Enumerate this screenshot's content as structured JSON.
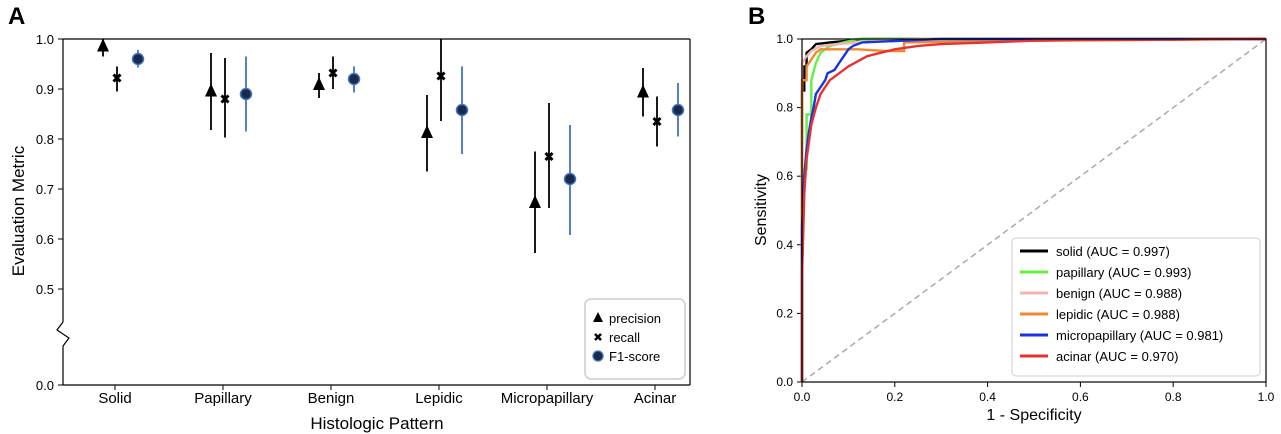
{
  "panels": {
    "a": "A",
    "b": "B"
  },
  "chart_data": [
    {
      "type": "scatter",
      "panel": "A",
      "title": "",
      "xlabel": "Histologic Pattern",
      "ylabel": "Evaluation Metric",
      "categories": [
        "Solid",
        "Papillary",
        "Benign",
        "Lepidic",
        "Micropapillary",
        "Acinar"
      ],
      "ylim": [
        0.5,
        1.0
      ],
      "y_axis_break": true,
      "yticks": [
        "0.0",
        "0.5",
        "0.6",
        "0.7",
        "0.8",
        "0.9",
        "1.0"
      ],
      "error_bars": true,
      "legend_position": "bottom-right",
      "series": [
        {
          "name": "precision",
          "marker": "triangle",
          "color": "#000000",
          "bar_color": "#000000",
          "values": [
            0.985,
            0.895,
            0.908,
            0.812,
            0.672,
            0.893
          ],
          "err_low": [
            0.965,
            0.818,
            0.882,
            0.735,
            0.572,
            0.845
          ],
          "err_high": [
            1.0,
            0.972,
            0.932,
            0.888,
            0.775,
            0.942
          ]
        },
        {
          "name": "recall",
          "marker": "x",
          "color": "#000000",
          "bar_color": "#000000",
          "values": [
            0.922,
            0.88,
            0.932,
            0.926,
            0.765,
            0.835
          ],
          "err_low": [
            0.895,
            0.803,
            0.9,
            0.836,
            0.662,
            0.785
          ],
          "err_high": [
            0.945,
            0.962,
            0.965,
            1.0,
            0.872,
            0.885
          ]
        },
        {
          "name": "F1-score",
          "marker": "circle",
          "color": "#1a2a4a",
          "bar_color": "#4472c4",
          "values": [
            0.96,
            0.89,
            0.92,
            0.858,
            0.72,
            0.858
          ],
          "err_low": [
            0.943,
            0.815,
            0.893,
            0.77,
            0.608,
            0.805
          ],
          "err_high": [
            0.978,
            0.965,
            0.945,
            0.945,
            0.828,
            0.912
          ]
        }
      ]
    },
    {
      "type": "line",
      "panel": "B",
      "title": "",
      "xlabel": "1 - Specificity",
      "ylabel": "Sensitivity",
      "xlim": [
        0.0,
        1.0
      ],
      "ylim": [
        0.0,
        1.0
      ],
      "xticks": [
        "0.0",
        "0.2",
        "0.4",
        "0.6",
        "0.8",
        "1.0"
      ],
      "yticks": [
        "0.0",
        "0.2",
        "0.4",
        "0.6",
        "0.8",
        "1.0"
      ],
      "legend_position": "lower-right",
      "diagonal": {
        "color": "#aaaaaa",
        "style": "dashed"
      },
      "series": [
        {
          "name": "solid (AUC = 0.997)",
          "color": "#000000",
          "x": [
            0,
            0,
            0.005,
            0.005,
            0.01,
            0.01,
            0.02,
            0.03,
            0.06,
            0.1,
            0.13,
            1.0
          ],
          "y": [
            0,
            0.85,
            0.85,
            0.92,
            0.92,
            0.96,
            0.97,
            0.985,
            0.99,
            0.995,
            1.0,
            1.0
          ]
        },
        {
          "name": "papillary (AUC = 0.993)",
          "color": "#66ee44",
          "x": [
            0,
            0,
            0.01,
            0.01,
            0.02,
            0.02,
            0.03,
            0.04,
            0.06,
            0.09,
            0.12,
            1.0
          ],
          "y": [
            0,
            0.62,
            0.62,
            0.78,
            0.78,
            0.88,
            0.93,
            0.96,
            0.98,
            0.99,
            1.0,
            1.0
          ]
        },
        {
          "name": "benign (AUC = 0.988)",
          "color": "#f2b5b5",
          "x": [
            0,
            0,
            0.01,
            0.02,
            0.04,
            0.08,
            0.12,
            0.17,
            0.25,
            1.0
          ],
          "y": [
            0,
            0.93,
            0.95,
            0.965,
            0.98,
            0.985,
            0.99,
            0.995,
            1.0,
            1.0
          ]
        },
        {
          "name": "lepidic (AUC = 0.988)",
          "color": "#f08a30",
          "x": [
            0,
            0,
            0.01,
            0.01,
            0.02,
            0.03,
            0.04,
            0.08,
            0.12,
            0.18,
            0.22,
            0.22,
            0.5,
            1.0
          ],
          "y": [
            0,
            0.88,
            0.88,
            0.92,
            0.94,
            0.96,
            0.97,
            0.97,
            0.97,
            0.965,
            0.965,
            0.99,
            0.995,
            1.0
          ]
        },
        {
          "name": "micropapillary (AUC = 0.981)",
          "color": "#1a33dd",
          "x": [
            0,
            0,
            0.005,
            0.01,
            0.015,
            0.02,
            0.025,
            0.03,
            0.04,
            0.05,
            0.055,
            0.07,
            0.08,
            0.09,
            0.1,
            0.11,
            0.13,
            0.3,
            1.0
          ],
          "y": [
            0,
            0.45,
            0.6,
            0.68,
            0.73,
            0.77,
            0.8,
            0.84,
            0.86,
            0.88,
            0.9,
            0.91,
            0.93,
            0.95,
            0.97,
            0.98,
            0.99,
            1.0,
            1.0
          ]
        },
        {
          "name": "acinar (AUC = 0.970)",
          "color": "#e53333",
          "x": [
            0,
            0,
            0.005,
            0.01,
            0.02,
            0.03,
            0.04,
            0.05,
            0.06,
            0.08,
            0.1,
            0.12,
            0.14,
            0.17,
            0.2,
            0.25,
            0.3,
            0.4,
            0.5,
            0.6,
            0.8,
            0.9,
            1.0
          ],
          "y": [
            0,
            0.3,
            0.55,
            0.65,
            0.75,
            0.8,
            0.84,
            0.86,
            0.88,
            0.9,
            0.92,
            0.935,
            0.95,
            0.96,
            0.97,
            0.98,
            0.985,
            0.99,
            0.995,
            0.997,
            0.998,
            1.0,
            1.0
          ]
        }
      ]
    }
  ]
}
